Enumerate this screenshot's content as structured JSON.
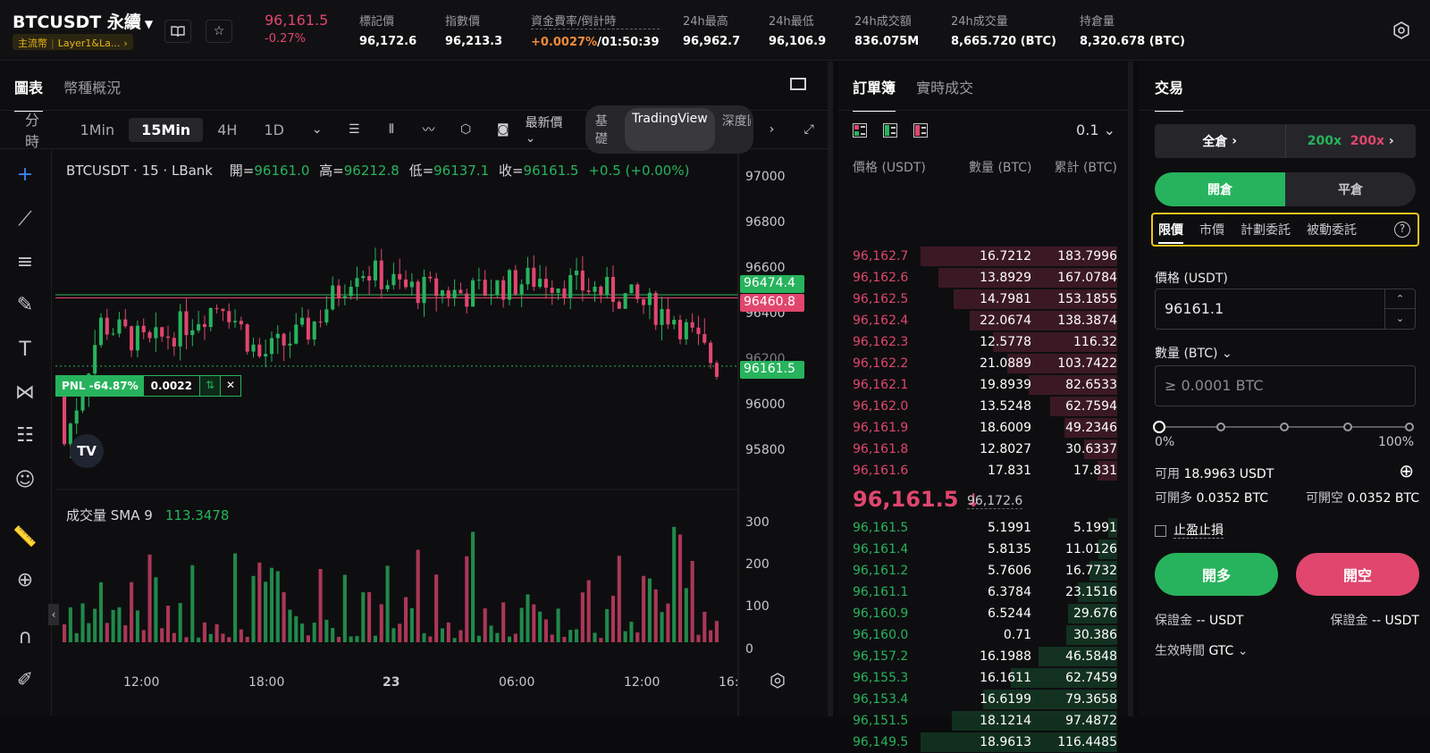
{
  "colors": {
    "up": "#27b35d",
    "down": "#e0466e",
    "accent": "#f0c419"
  },
  "header": {
    "symbol": "BTCUSDT 永續",
    "tag1": "主流幣",
    "tag2": "Layer1&La...",
    "price": "96,161.5",
    "change": "-0.27%",
    "stats": [
      {
        "label": "標記價",
        "value": "96,172.6"
      },
      {
        "label": "指數價",
        "value": "96,213.3"
      },
      {
        "label": "資金費率/倒計時",
        "value_rate": "+0.0027%",
        "value_time": "/01:50:39"
      },
      {
        "label": "24h最高",
        "value": "96,962.7"
      },
      {
        "label": "24h最低",
        "value": "96,106.9"
      },
      {
        "label": "24h成交額",
        "value": "836.075M"
      },
      {
        "label": "24h成交量",
        "value": "8,665.720 (BTC)"
      },
      {
        "label": "持倉量",
        "value": "8,320.678 (BTC)"
      }
    ]
  },
  "chart_tabs": [
    "圖表",
    "幣種概況"
  ],
  "timeframes": [
    "分時",
    "1Min",
    "15Min",
    "4H",
    "1D"
  ],
  "price_type": "最新價",
  "views": [
    "基礎",
    "TradingView",
    "深度圖"
  ],
  "ohlc": {
    "title": "BTCUSDT · 15 · LBank",
    "o_lbl": "開=",
    "o": "96161.0",
    "h_lbl": "高=",
    "h": "96212.8",
    "l_lbl": "低=",
    "l": "96137.1",
    "c_lbl": "收=",
    "c": "96161.5",
    "chg": "+0.5 (+0.00%)"
  },
  "volume": {
    "label": "成交量 SMA 9",
    "value": "113.3478"
  },
  "pnl": {
    "label": "PNL -64.87%",
    "qty": "0.0022"
  },
  "price_tags": {
    "green": "96474.4",
    "red": "96460.8",
    "last": "96161.5"
  },
  "x_ticks": [
    "12:00",
    "18:00",
    "23",
    "06:00",
    "12:00",
    "16:"
  ],
  "chart_data": {
    "type": "candlestick",
    "title": "BTCUSDT · 15 · LBank",
    "y_ticks": [
      97000,
      96800,
      96600,
      96400,
      96200,
      96000,
      95800
    ],
    "vol_ticks": [
      300,
      200,
      100,
      0
    ]
  },
  "orderbook": {
    "tabs": [
      "訂單簿",
      "實時成交"
    ],
    "precision": "0.1",
    "headers": [
      "價格 (USDT)",
      "數量 (BTC)",
      "累計 (BTC)"
    ],
    "asks": [
      {
        "p": "96,162.7",
        "q": "16.7212",
        "t": "183.7996",
        "w": 1.0
      },
      {
        "p": "96,162.6",
        "q": "13.8929",
        "t": "167.0784",
        "w": 0.91
      },
      {
        "p": "96,162.5",
        "q": "14.7981",
        "t": "153.1855",
        "w": 0.83
      },
      {
        "p": "96,162.4",
        "q": "22.0674",
        "t": "138.3874",
        "w": 0.75
      },
      {
        "p": "96,162.3",
        "q": "12.5778",
        "t": "116.32",
        "w": 0.63
      },
      {
        "p": "96,162.2",
        "q": "21.0889",
        "t": "103.7422",
        "w": 0.56
      },
      {
        "p": "96,162.1",
        "q": "19.8939",
        "t": "82.6533",
        "w": 0.45
      },
      {
        "p": "96,162.0",
        "q": "13.5248",
        "t": "62.7594",
        "w": 0.34
      },
      {
        "p": "96,161.9",
        "q": "18.6009",
        "t": "49.2346",
        "w": 0.27
      },
      {
        "p": "96,161.8",
        "q": "12.8027",
        "t": "30.6337",
        "w": 0.17
      },
      {
        "p": "96,161.6",
        "q": "17.831",
        "t": "17.831",
        "w": 0.1
      }
    ],
    "mid": "96,161.5",
    "mid_arrow": "↓",
    "mark": "96,172.6",
    "bids": [
      {
        "p": "96,161.5",
        "q": "5.1991",
        "t": "5.1991",
        "w": 0.045
      },
      {
        "p": "96,161.4",
        "q": "5.8135",
        "t": "11.0126",
        "w": 0.095
      },
      {
        "p": "96,161.2",
        "q": "5.7606",
        "t": "16.7732",
        "w": 0.14
      },
      {
        "p": "96,161.1",
        "q": "6.3784",
        "t": "23.1516",
        "w": 0.2
      },
      {
        "p": "96,160.9",
        "q": "6.5244",
        "t": "29.676",
        "w": 0.25
      },
      {
        "p": "96,160.0",
        "q": "0.71",
        "t": "30.386",
        "w": 0.26
      },
      {
        "p": "96,157.2",
        "q": "16.1988",
        "t": "46.5848",
        "w": 0.4
      },
      {
        "p": "96,155.3",
        "q": "16.1611",
        "t": "62.7459",
        "w": 0.54
      },
      {
        "p": "96,153.4",
        "q": "16.6199",
        "t": "79.3658",
        "w": 0.68
      },
      {
        "p": "96,151.5",
        "q": "18.1214",
        "t": "97.4872",
        "w": 0.84
      },
      {
        "p": "96,149.5",
        "q": "18.9613",
        "t": "116.4485",
        "w": 1.0
      }
    ]
  },
  "trade": {
    "title": "交易",
    "margin": "全倉",
    "lev_long": "200x",
    "lev_short": "200x",
    "open": "開倉",
    "close": "平倉",
    "order_types": [
      "限價",
      "市價",
      "計劃委託",
      "被動委託"
    ],
    "price_label": "價格 (USDT)",
    "price_value": "96161.1",
    "qty_label": "數量 (BTC)",
    "qty_placeholder": "≥ 0.0001 BTC",
    "pct_min": "0%",
    "pct_max": "100%",
    "avail_lbl": "可用",
    "avail": "18.9963 USDT",
    "can_long_lbl": "可開多",
    "can_long": "0.0352 BTC",
    "can_short_lbl": "可開空",
    "can_short": "0.0352 BTC",
    "tpsl": "止盈止損",
    "long_btn": "開多",
    "short_btn": "開空",
    "margin_l_lbl": "保證金",
    "margin_l": "-- USDT",
    "margin_s_lbl": "保證金",
    "margin_s": "-- USDT",
    "tif_lbl": "生效時間",
    "tif": "GTC"
  }
}
